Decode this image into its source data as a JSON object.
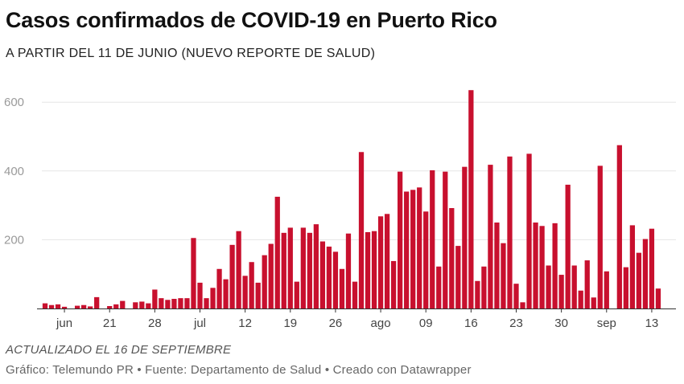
{
  "header": {
    "title": "Casos confirmados de COVID-19 en Puerto Rico",
    "subtitle": "A PARTIR DEL 11 DE JUNIO (NUEVO REPORTE DE SALUD)"
  },
  "footer": {
    "updated": "ACTUALIZADO EL 16 DE SEPTIEMBRE",
    "source": "Gráfico: Telemundo PR • Fuente: Departamento de Salud • Creado con Datawrapper"
  },
  "colors": {
    "bar": "#c8102e",
    "grid": "#e6e6e6",
    "tick_y": "#9a9a9a"
  },
  "chart_data": {
    "type": "bar",
    "ylim": [
      0,
      650
    ],
    "y_ticks": [
      200,
      400,
      600
    ],
    "grid": true,
    "x": [
      "2020-06-11",
      "2020-06-12",
      "2020-06-13",
      "2020-06-14",
      "2020-06-15",
      "2020-06-16",
      "2020-06-17",
      "2020-06-18",
      "2020-06-19",
      "2020-06-20",
      "2020-06-21",
      "2020-06-22",
      "2020-06-23",
      "2020-06-24",
      "2020-06-25",
      "2020-06-26",
      "2020-06-27",
      "2020-06-28",
      "2020-06-29",
      "2020-06-30",
      "2020-07-01",
      "2020-07-02",
      "2020-07-03",
      "2020-07-04",
      "2020-07-05",
      "2020-07-06",
      "2020-07-07",
      "2020-07-08",
      "2020-07-09",
      "2020-07-10",
      "2020-07-11",
      "2020-07-12",
      "2020-07-13",
      "2020-07-14",
      "2020-07-15",
      "2020-07-16",
      "2020-07-17",
      "2020-07-18",
      "2020-07-19",
      "2020-07-20",
      "2020-07-21",
      "2020-07-22",
      "2020-07-23",
      "2020-07-24",
      "2020-07-25",
      "2020-07-26",
      "2020-07-27",
      "2020-07-28",
      "2020-07-29",
      "2020-07-30",
      "2020-07-31",
      "2020-08-01",
      "2020-08-02",
      "2020-08-03",
      "2020-08-04",
      "2020-08-05",
      "2020-08-06",
      "2020-08-07",
      "2020-08-08",
      "2020-08-09",
      "2020-08-10",
      "2020-08-11",
      "2020-08-12",
      "2020-08-13",
      "2020-08-14",
      "2020-08-15",
      "2020-08-16",
      "2020-08-17",
      "2020-08-18",
      "2020-08-19",
      "2020-08-20",
      "2020-08-21",
      "2020-08-22",
      "2020-08-23",
      "2020-08-24",
      "2020-08-25",
      "2020-08-26",
      "2020-08-27",
      "2020-08-28",
      "2020-08-29",
      "2020-08-30",
      "2020-08-31",
      "2020-09-01",
      "2020-09-02",
      "2020-09-03",
      "2020-09-04",
      "2020-09-05",
      "2020-09-06",
      "2020-09-07",
      "2020-09-08",
      "2020-09-09",
      "2020-09-10",
      "2020-09-11",
      "2020-09-12",
      "2020-09-13",
      "2020-09-14",
      "2020-09-15",
      "2020-09-16"
    ],
    "values": [
      15,
      10,
      12,
      5,
      0,
      8,
      10,
      6,
      33,
      0,
      7,
      12,
      22,
      0,
      18,
      20,
      15,
      55,
      30,
      25,
      28,
      30,
      30,
      205,
      75,
      30,
      60,
      115,
      85,
      185,
      225,
      95,
      135,
      75,
      155,
      188,
      325,
      220,
      235,
      78,
      235,
      220,
      245,
      195,
      180,
      165,
      115,
      218,
      78,
      455,
      222,
      225,
      268,
      275,
      138,
      398,
      340,
      345,
      352,
      282,
      402,
      122,
      398,
      292,
      182,
      412,
      635,
      80,
      122,
      418,
      250,
      190,
      442,
      72,
      18,
      450,
      250,
      240,
      125,
      248,
      98,
      360,
      125,
      52,
      140,
      32,
      415,
      108,
      0,
      475,
      120,
      242,
      162,
      202,
      232,
      58,
      0,
      0
    ],
    "x_ticks": [
      {
        "label": "jun",
        "date": "2020-06-14"
      },
      {
        "label": "21",
        "date": "2020-06-21"
      },
      {
        "label": "28",
        "date": "2020-06-28"
      },
      {
        "label": "jul",
        "date": "2020-07-05"
      },
      {
        "label": "12",
        "date": "2020-07-12"
      },
      {
        "label": "19",
        "date": "2020-07-19"
      },
      {
        "label": "26",
        "date": "2020-07-26"
      },
      {
        "label": "ago",
        "date": "2020-08-02"
      },
      {
        "label": "09",
        "date": "2020-08-09"
      },
      {
        "label": "16",
        "date": "2020-08-16"
      },
      {
        "label": "23",
        "date": "2020-08-23"
      },
      {
        "label": "30",
        "date": "2020-08-30"
      },
      {
        "label": "sep",
        "date": "2020-09-06"
      },
      {
        "label": "13",
        "date": "2020-09-13"
      }
    ]
  }
}
